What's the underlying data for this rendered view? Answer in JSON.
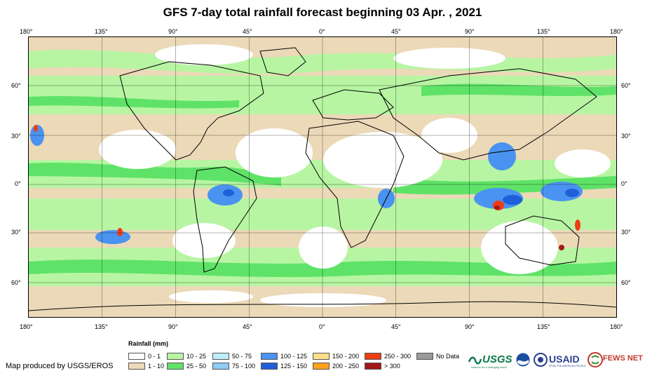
{
  "title": "GFS 7-day total rainfall forecast beginning 03 Apr. , 2021",
  "axes": {
    "longitudes": [
      "180°",
      "135°",
      "90°",
      "45°",
      "0°",
      "45°",
      "90°",
      "135°",
      "180°"
    ],
    "latitudes": [
      "60°",
      "30°",
      "0°",
      "30°",
      "60°"
    ]
  },
  "legend": {
    "title": "Rainfall (mm)",
    "items": [
      {
        "label": "0 - 1",
        "color": "#ffffff"
      },
      {
        "label": "1 - 10",
        "color": "#ecd9b8"
      },
      {
        "label": "10 - 25",
        "color": "#b7f5a3"
      },
      {
        "label": "25 - 50",
        "color": "#5fe268"
      },
      {
        "label": "50 - 75",
        "color": "#bfeefa"
      },
      {
        "label": "75 - 100",
        "color": "#8ecbf5"
      },
      {
        "label": "100 - 125",
        "color": "#4a93f0"
      },
      {
        "label": "125 - 150",
        "color": "#1f5fd8"
      },
      {
        "label": "150 - 200",
        "color": "#ffe08a"
      },
      {
        "label": "200 - 250",
        "color": "#ffa11a"
      },
      {
        "label": "250 - 300",
        "color": "#ee3d12"
      },
      {
        "label": "> 300",
        "color": "#a31717"
      },
      {
        "label": "No Data",
        "color": "#9a9a9a"
      }
    ]
  },
  "credit": "Map produced by USGS/EROS",
  "logos": {
    "usgs": "USGS",
    "usgs_tagline": "science for a changing world",
    "usaid": "USAID",
    "usaid_tagline": "FROM THE AMERICAN PEOPLE",
    "fews": "FEWS NET"
  }
}
